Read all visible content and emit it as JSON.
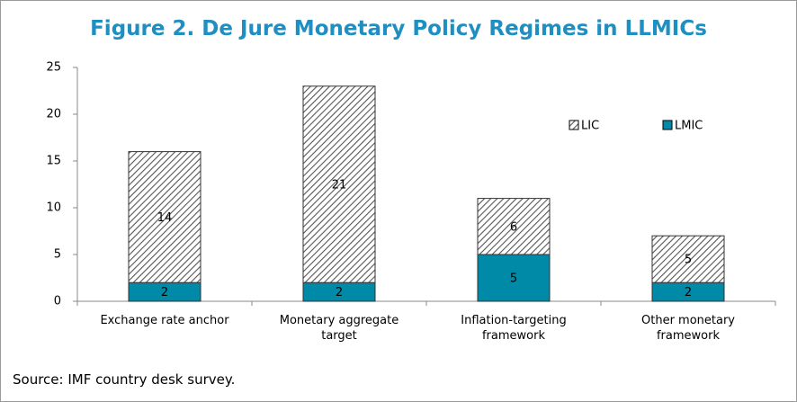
{
  "chart_data": {
    "type": "stacked_bar",
    "title": "Figure 2. De Jure Monetary Policy Regimes in LLMICs",
    "categories": [
      "Exchange rate anchor",
      "Monetary aggregate target",
      "Inflation-targeting framework",
      "Other monetary framework"
    ],
    "series": [
      {
        "name": "LMIC",
        "color": "#008aa8",
        "values": [
          2,
          2,
          5,
          2
        ]
      },
      {
        "name": "LIC",
        "color": "hatched",
        "values": [
          14,
          21,
          6,
          5
        ]
      }
    ],
    "ylim": [
      0,
      25
    ],
    "yticks": [
      0,
      5,
      10,
      15,
      20,
      25
    ],
    "grid": false,
    "legend": "upper right",
    "note": "Source: IMF country desk survey."
  }
}
